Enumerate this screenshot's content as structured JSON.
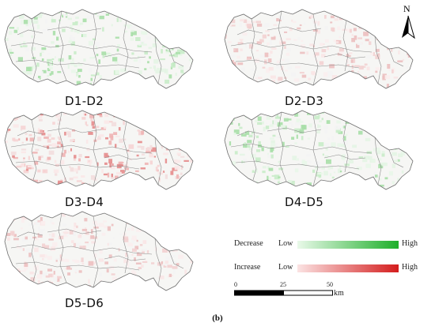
{
  "panels": [
    {
      "label": "D1-D2",
      "tone": "green"
    },
    {
      "label": "D2-D3",
      "tone": "pink"
    },
    {
      "label": "D3-D4",
      "tone": "red"
    },
    {
      "label": "D4-D5",
      "tone": "green"
    },
    {
      "label": "D5-D6",
      "tone": "pink"
    }
  ],
  "north": {
    "letter": "N",
    "icon": "north-arrow-icon"
  },
  "legend": {
    "decrease": {
      "label": "Decrease",
      "low": "Low",
      "high": "High",
      "color_low": "#e9f9e9",
      "color_high": "#1eaf2a"
    },
    "increase": {
      "label": "Increase",
      "low": "Low",
      "high": "High",
      "color_low": "#fbe3e3",
      "color_high": "#d41d1d"
    }
  },
  "scale": {
    "ticks": [
      "0",
      "25",
      "50"
    ],
    "unit": "km"
  },
  "caption": "(b)"
}
